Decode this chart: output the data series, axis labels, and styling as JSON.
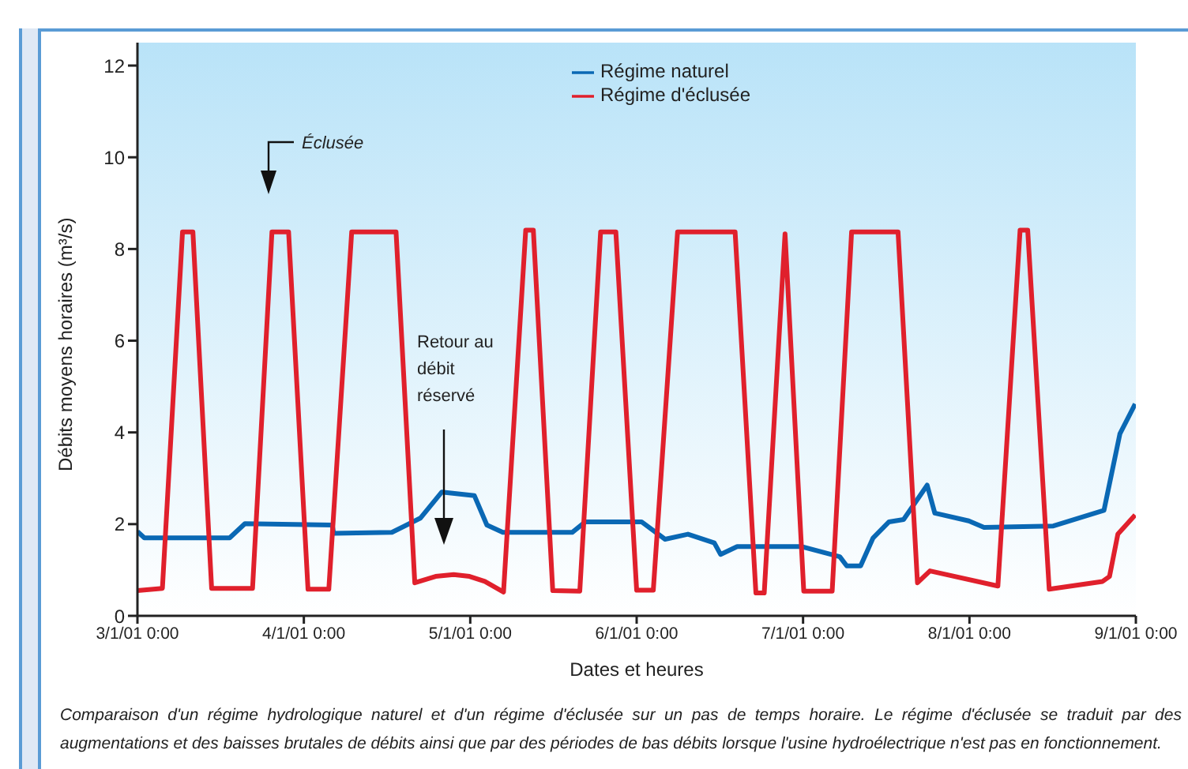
{
  "chart_data": {
    "type": "line",
    "xlabel": "Dates et heures",
    "ylabel": "Débits moyens horaires (m³/s)",
    "xlim": [
      "--01-03T00:00",
      "--01-09T00:00"
    ],
    "xticks": [
      {
        "value": "--01-03T00:00",
        "label": "3/1/01 0:00"
      },
      {
        "value": "--01-04T00:00",
        "label": "4/1/01 0:00"
      },
      {
        "value": "--01-05T00:00",
        "label": "5/1/01 0:00"
      },
      {
        "value": "--01-06T00:00",
        "label": "6/1/01 0:00"
      },
      {
        "value": "--01-07T00:00",
        "label": "7/1/01 0:00"
      },
      {
        "value": "--01-08T00:00",
        "label": "8/1/01 0:00"
      },
      {
        "value": "--01-09T00:00",
        "label": "9/1/01 0:00"
      }
    ],
    "ylim": [
      0,
      12.5
    ],
    "yticks": [
      0,
      2,
      4,
      6,
      8,
      10,
      12
    ],
    "grid": false,
    "legend": "top",
    "marker": "none",
    "line_style": "solid",
    "series": [
      {
        "name": "Régime naturel",
        "color": "#0a68b4",
        "x": [
          "--01-03T00:00",
          "--01-03T01:00",
          "--01-03T13:18",
          "--01-03T15:30",
          "--01-04T04:06",
          "--01-04T04:18",
          "--01-04T12:42",
          "--01-04T16:48",
          "--01-04T19:54",
          "--01-05T00:36",
          "--01-05T02:24",
          "--01-05T04:42",
          "--01-05T14:42",
          "--01-05T16:36",
          "--01-06T00:42",
          "--01-06T04:06",
          "--01-06T07:24",
          "--01-06T11:12",
          "--01-06T12:06",
          "--01-06T14:30",
          "--01-06T23:48",
          "--01-07T05:18",
          "--01-07T06:18",
          "--01-07T08:18",
          "--01-07T10:06",
          "--01-07T12:24",
          "--01-07T14:30",
          "--01-07T17:54",
          "--01-07T19:00",
          "--01-07T23:54",
          "--01-08T02:06",
          "--01-08T12:06",
          "--01-08T19:24",
          "--01-08T21:42",
          "--01-08T23:54"
        ],
        "values": [
          1.84,
          1.7,
          1.7,
          2.01,
          1.98,
          1.8,
          1.82,
          2.13,
          2.7,
          2.62,
          1.98,
          1.82,
          1.82,
          2.05,
          2.05,
          1.67,
          1.78,
          1.59,
          1.34,
          1.51,
          1.51,
          1.29,
          1.09,
          1.09,
          1.7,
          2.05,
          2.1,
          2.85,
          2.24,
          2.07,
          1.93,
          1.96,
          2.3,
          3.97,
          4.62
        ]
      },
      {
        "name": "Régime d'éclusée",
        "color": "#e0202c",
        "x": [
          "--01-03T00:00",
          "--01-03T03:36",
          "--01-03T06:30",
          "--01-03T08:00",
          "--01-03T10:42",
          "--01-03T16:36",
          "--01-03T19:24",
          "--01-03T21:48",
          "--01-04T00:36",
          "--01-04T03:36",
          "--01-04T06:54",
          "--01-04T13:18",
          "--01-04T16:00",
          "--01-04T19:00",
          "--01-04T21:36",
          "--01-04T23:54",
          "--01-05T02:06",
          "--01-05T04:48",
          "--01-05T08:00",
          "--01-05T09:06",
          "--01-05T11:54",
          "--01-05T15:48",
          "--01-05T18:48",
          "--01-05T21:00",
          "--01-06T00:00",
          "--01-06T02:24",
          "--01-06T05:54",
          "--01-06T14:12",
          "--01-06T17:12",
          "--01-06T18:24",
          "--01-06T21:24",
          "--01-07T00:06",
          "--01-07T04:12",
          "--01-07T07:00",
          "--01-07T13:42",
          "--01-07T16:30",
          "--01-07T18:18",
          "--01-08T04:06",
          "--01-08T07:18",
          "--01-08T08:24",
          "--01-08T11:30",
          "--01-08T19:12",
          "--01-08T20:12",
          "--01-08T21:24",
          "--01-08T23:54"
        ],
        "values": [
          0.55,
          0.6,
          8.37,
          8.37,
          0.6,
          0.6,
          8.37,
          8.37,
          0.58,
          0.58,
          8.37,
          8.37,
          0.72,
          0.86,
          0.9,
          0.86,
          0.75,
          0.52,
          8.41,
          8.41,
          0.55,
          0.54,
          8.37,
          8.37,
          0.56,
          0.56,
          8.37,
          8.37,
          0.5,
          0.5,
          8.33,
          0.54,
          0.54,
          8.37,
          8.37,
          0.72,
          0.98,
          0.65,
          8.41,
          8.41,
          0.58,
          0.75,
          0.86,
          1.78,
          2.2
        ]
      }
    ],
    "annotations": [
      "Éclusée",
      "Retour au débit réservé",
      "Comparaison d'un régime hydrologique naturel et d'un régime d'éclusée sur un pas de temps horaire. Le régime d'éclusée se traduit par des augmentations et des baisses brutales de débits ainsi que par des périodes de bas débits lorsque l'usine hydroélectrique n'est pas en fonctionnement."
    ]
  }
}
